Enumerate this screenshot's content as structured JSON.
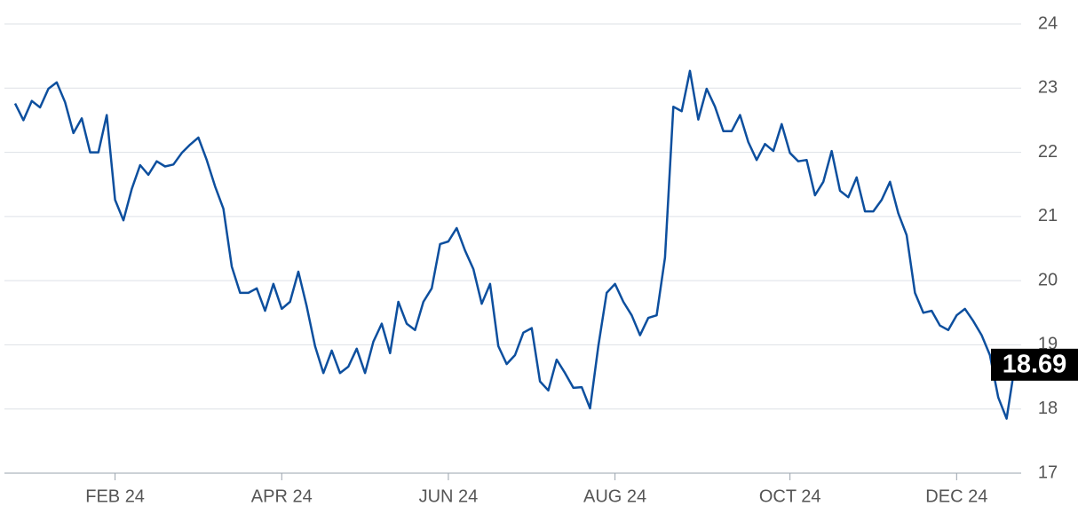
{
  "chart_data": {
    "type": "line",
    "color": "#0d4f9e",
    "grid": true,
    "ylim": [
      17,
      24
    ],
    "yticks": [
      17,
      18,
      19,
      20,
      21,
      22,
      23,
      24
    ],
    "categories": [
      null,
      null,
      null,
      null,
      null,
      null,
      null,
      null,
      null,
      null,
      null,
      null,
      "FEB 24",
      null,
      null,
      null,
      null,
      null,
      null,
      null,
      null,
      null,
      null,
      null,
      null,
      null,
      null,
      null,
      null,
      null,
      null,
      null,
      "APR 24",
      null,
      null,
      null,
      null,
      null,
      null,
      null,
      null,
      null,
      null,
      null,
      null,
      null,
      null,
      null,
      null,
      null,
      null,
      null,
      "JUN 24",
      null,
      null,
      null,
      null,
      null,
      null,
      null,
      null,
      null,
      null,
      null,
      null,
      null,
      null,
      null,
      null,
      null,
      null,
      null,
      "AUG 24",
      null,
      null,
      null,
      null,
      null,
      null,
      null,
      null,
      null,
      null,
      null,
      null,
      null,
      null,
      null,
      null,
      null,
      null,
      null,
      null,
      "OCT 24",
      null,
      null,
      null,
      null,
      null,
      null,
      null,
      null,
      null,
      null,
      null,
      null,
      null,
      null,
      null,
      null,
      null,
      null,
      null,
      "DEC 24",
      null,
      null,
      null,
      null,
      null,
      null,
      null
    ],
    "values": [
      22.76,
      22.5,
      22.8,
      22.7,
      22.99,
      23.09,
      22.78,
      22.3,
      22.53,
      22.0,
      22.0,
      22.58,
      21.26,
      20.94,
      21.43,
      21.8,
      21.65,
      21.86,
      21.78,
      21.81,
      21.99,
      22.12,
      22.23,
      21.88,
      21.47,
      21.12,
      20.22,
      19.81,
      19.81,
      19.88,
      19.53,
      19.95,
      19.56,
      19.67,
      20.14,
      19.6,
      18.98,
      18.56,
      18.91,
      18.56,
      18.66,
      18.94,
      18.56,
      19.05,
      19.33,
      18.87,
      19.67,
      19.33,
      19.23,
      19.67,
      19.88,
      20.57,
      20.61,
      20.82,
      20.47,
      20.18,
      19.64,
      19.95,
      18.98,
      18.7,
      18.84,
      19.19,
      19.26,
      18.43,
      18.29,
      18.77,
      18.56,
      18.33,
      18.34,
      18.01,
      18.98,
      19.81,
      19.95,
      19.67,
      19.46,
      19.15,
      19.42,
      19.46,
      20.36,
      22.71,
      22.64,
      23.27,
      22.51,
      22.99,
      22.71,
      22.33,
      22.33,
      22.58,
      22.16,
      21.88,
      22.13,
      22.02,
      22.44,
      21.99,
      21.86,
      21.88,
      21.33,
      21.54,
      22.02,
      21.4,
      21.3,
      21.61,
      21.08,
      21.08,
      21.26,
      21.54,
      21.05,
      20.71,
      19.81,
      19.5,
      19.53,
      19.3,
      19.23,
      19.46,
      19.56,
      19.37,
      19.15,
      18.84,
      18.18,
      17.85,
      18.69
    ]
  }
}
